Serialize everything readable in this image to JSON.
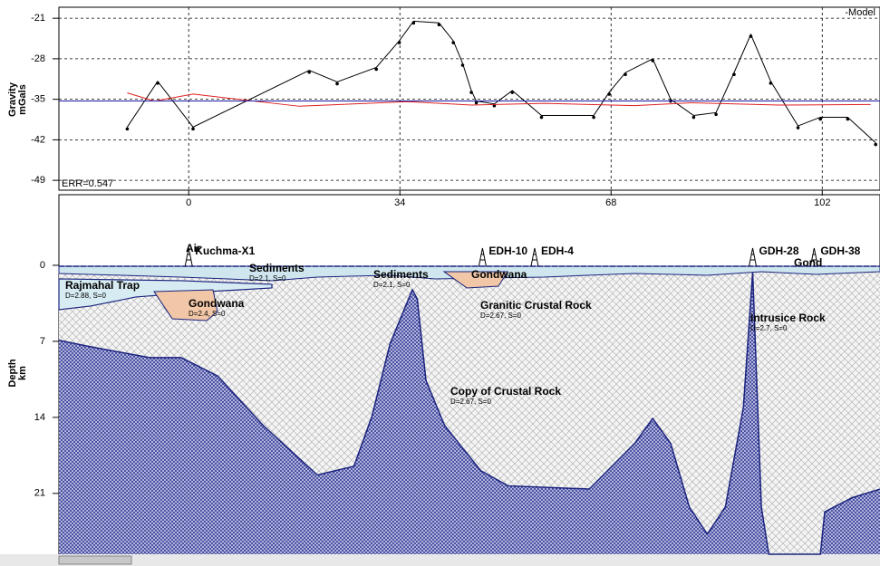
{
  "chart_data": [
    {
      "type": "line",
      "ylabel": [
        "Gravity",
        "mGals"
      ],
      "annotations": [
        "-Model",
        "ERR=0.547"
      ],
      "xlim": [
        -20.9,
        111.3
      ],
      "ylim": [
        -50.7,
        -19.1
      ],
      "xticks": [
        0,
        34,
        68,
        102
      ],
      "yticks": [
        -21,
        -28,
        -35,
        -42,
        -49
      ],
      "grid": true,
      "series": [
        {
          "color": "#000000",
          "style": "line+markers",
          "x": [
            -9.9,
            -5.0,
            0.7,
            19.4,
            23.9,
            30.2,
            33.9,
            36.2,
            40.3,
            42.6,
            44.1,
            45.5,
            46.3,
            49.2,
            52.1,
            56.8,
            65.2,
            67.7,
            70.3,
            74.7,
            77.6,
            81.3,
            84.9,
            87.8,
            90.5,
            93.7,
            98.1,
            101.7,
            106.1,
            110.6
          ],
          "values": [
            -39.8,
            -31.9,
            -39.8,
            -30.0,
            -32.0,
            -29.5,
            -24.9,
            -21.5,
            -21.8,
            -24.9,
            -28.8,
            -33.5,
            -35.3,
            -35.8,
            -33.5,
            -37.8,
            -37.8,
            -33.8,
            -30.4,
            -28.0,
            -35.0,
            -37.8,
            -37.3,
            -30.4,
            -23.8,
            -31.9,
            -39.6,
            -38.1,
            -38.1,
            -42.5
          ]
        },
        {
          "color": "#e02020",
          "style": "line",
          "x": [
            -9.9,
            -5.5,
            0.7,
            17.8,
            35.3,
            45.5,
            57.2,
            71.8,
            81.0,
            95.0,
            109.8
          ],
          "values": [
            -33.9,
            -35.3,
            -34.1,
            -36.2,
            -35.4,
            -36.0,
            -35.7,
            -36.1,
            -35.6,
            -36.0,
            -35.9
          ]
        },
        {
          "color": "#1a1aa0",
          "style": "line",
          "x": [
            -20.9,
            111.3
          ],
          "values": [
            -35.3,
            -35.3
          ]
        }
      ]
    },
    {
      "type": "section",
      "ylabel": [
        "Depth",
        "km"
      ],
      "xlim": [
        -20.9,
        111.3
      ],
      "ylim": [
        26.6,
        -6.5
      ],
      "yticks": [
        0,
        7,
        14,
        21
      ],
      "series": [
        {
          "color": "#1a237e",
          "x": [
            -20.9,
            -15.8,
            -6.3,
            -1.2,
            4.7,
            12.0,
            20.7,
            26.6,
            29.5,
            32.4,
            36.0,
            36.8,
            38.2,
            41.2,
            47.0,
            51.4,
            64.5,
            71.8,
            74.7,
            77.6,
            80.6,
            83.5,
            86.4,
            89.3,
            90.8,
            92.2,
            93.4,
            101.7,
            102.4,
            106.8,
            111.3
          ],
          "values": [
            6.9,
            7.5,
            8.5,
            8.5,
            10.2,
            14.75,
            19.3,
            18.5,
            13.9,
            7.25,
            2.25,
            3.1,
            10.6,
            14.75,
            18.9,
            20.3,
            20.6,
            16.4,
            14.1,
            16.4,
            22.25,
            24.75,
            22.25,
            13.1,
            0.6,
            22.25,
            26.6,
            26.6,
            22.7,
            21.4,
            20.6
          ]
        }
      ],
      "wells": [
        {
          "label": "Kuchma-X1",
          "x": 0
        },
        {
          "label": "EDH-10",
          "x": 47.3
        },
        {
          "label": "EDH-4",
          "x": 55.7
        },
        {
          "label": "GDH-28",
          "x": 90.8
        },
        {
          "label": "GDH-38",
          "x": 100.7
        }
      ],
      "bodies": [
        {
          "label": "Air"
        },
        {
          "label": "Sediments",
          "params": "D=2.1, S=0"
        },
        {
          "label": "Rajmahal Trap",
          "params": "D=2.88, S=0"
        },
        {
          "label": "Gondwana",
          "params": "D=2.4, S=0"
        },
        {
          "label": "Sediments",
          "params": "D=2.1, S=0"
        },
        {
          "label": "Gondwana"
        },
        {
          "label": "Granitic Crustal Rock",
          "params": "D=2.67, S=0"
        },
        {
          "label": "Intrusice Rock",
          "params": "D=2.7, S=0"
        },
        {
          "label": "Copy of Crustal Rock",
          "params": "D=2.67, S=0"
        },
        {
          "label": "Gond"
        }
      ]
    }
  ]
}
